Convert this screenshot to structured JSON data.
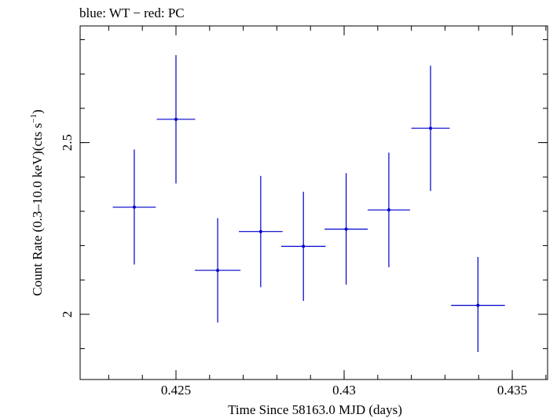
{
  "chart_data": {
    "type": "scatter",
    "title": "blue: WT − red: PC",
    "xlabel": "Time Since 58163.0 MJD (days)",
    "ylabel_main": "Count Rate (0.3–10.0 keV)(cts s",
    "ylabel_sup": "−1",
    "ylabel_tail": ")",
    "xlim": [
      0.42215,
      0.43605
    ],
    "ylim": [
      1.81,
      2.84
    ],
    "x_ticks_major": [
      0.425,
      0.43,
      0.435
    ],
    "x_tick_labels": [
      "0.425",
      "0.43",
      "0.435"
    ],
    "x_ticks_minor_step": 0.001,
    "y_ticks_major": [
      2,
      2.5
    ],
    "y_tick_labels": [
      "2",
      "2.5"
    ],
    "y_ticks_minor_step": 0.1,
    "grid": false,
    "series": [
      {
        "color": "#0000cc",
        "points": [
          {
            "x": 0.42376,
            "xerr": 0.00064,
            "y": 2.312,
            "yerr_lo": 0.167,
            "yerr_hi": 0.168
          },
          {
            "x": 0.425,
            "xerr": 0.00057,
            "y": 2.568,
            "yerr_lo": 0.187,
            "yerr_hi": 0.187
          },
          {
            "x": 0.42624,
            "xerr": 0.00068,
            "y": 2.128,
            "yerr_lo": 0.152,
            "yerr_hi": 0.152
          },
          {
            "x": 0.42752,
            "xerr": 0.00065,
            "y": 2.241,
            "yerr_lo": 0.162,
            "yerr_hi": 0.162
          },
          {
            "x": 0.42879,
            "xerr": 0.00066,
            "y": 2.198,
            "yerr_lo": 0.159,
            "yerr_hi": 0.159
          },
          {
            "x": 0.43006,
            "xerr": 0.00064,
            "y": 2.248,
            "yerr_lo": 0.162,
            "yerr_hi": 0.163
          },
          {
            "x": 0.43133,
            "xerr": 0.00063,
            "y": 2.304,
            "yerr_lo": 0.167,
            "yerr_hi": 0.167
          },
          {
            "x": 0.43257,
            "xerr": 0.00057,
            "y": 2.542,
            "yerr_lo": 0.183,
            "yerr_hi": 0.182
          },
          {
            "x": 0.43398,
            "xerr": 0.0008,
            "y": 2.026,
            "yerr_lo": 0.136,
            "yerr_hi": 0.141
          }
        ]
      }
    ]
  }
}
